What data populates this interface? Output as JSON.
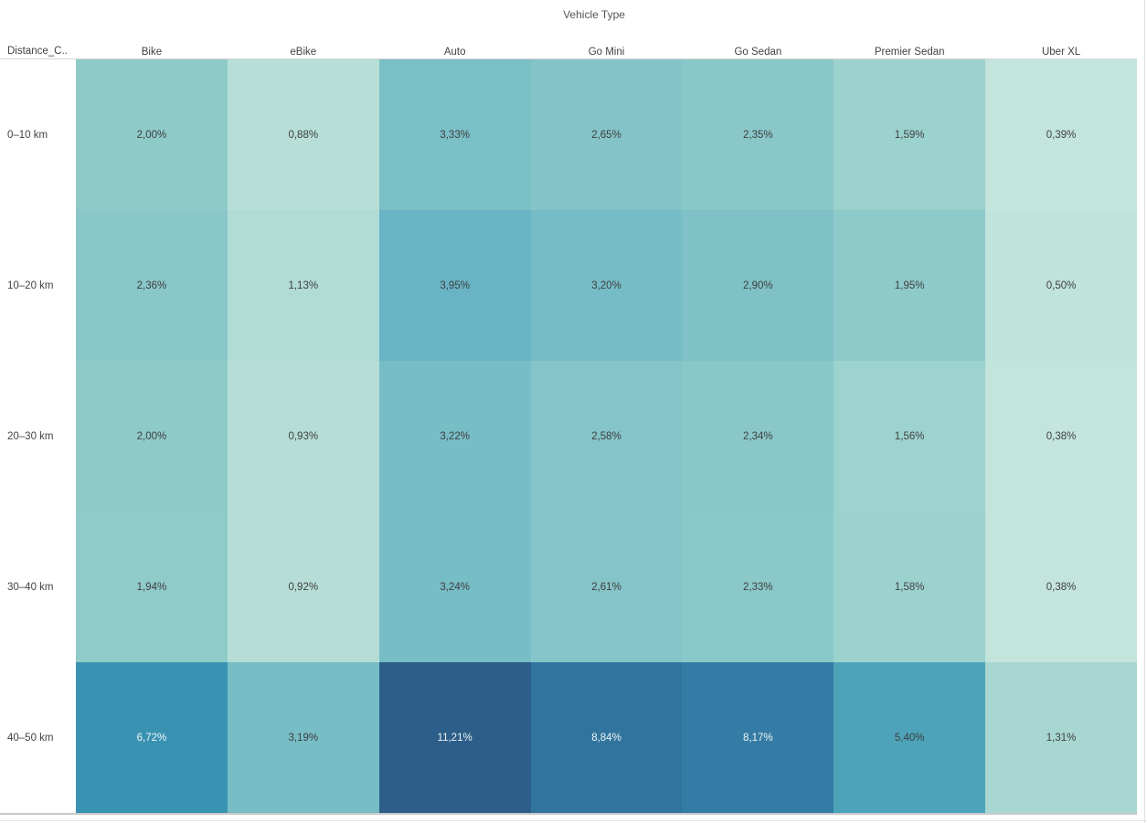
{
  "header": {
    "title": "Vehicle Type",
    "corner_label": "Distance_C.."
  },
  "colors": {
    "dark_cell_text": "#3f3f3f",
    "light_cell_text": "#eef4f6",
    "header_text": "#424242",
    "divider": "#d5d5d5"
  },
  "chart_data": {
    "type": "heatmap",
    "title": "Vehicle Type",
    "x_axis_label": "Vehicle Type",
    "y_axis_label": "Distance_C..",
    "x_categories": [
      "Bike",
      "eBike",
      "Auto",
      "Go Mini",
      "Go Sedan",
      "Premier Sedan",
      "Uber XL"
    ],
    "y_categories": [
      "0–10 km",
      "10–20 km",
      "20–30 km",
      "30–40 km",
      "40–50 km"
    ],
    "values_unit": "percent",
    "legend": "none",
    "color_scale": {
      "min_value": 0.38,
      "max_value": 11.21,
      "min_color": "#c3e5de",
      "max_color": "#2d5e89"
    },
    "rows": [
      {
        "label": "0–10 km",
        "cells": [
          {
            "label": "2,00%",
            "value": 2.0,
            "bg": "#8ecac8",
            "light": false
          },
          {
            "label": "0,88%",
            "value": 0.88,
            "bg": "#b7dfd8",
            "light": false
          },
          {
            "label": "3,33%",
            "value": 3.33,
            "bg": "#7bbfc7",
            "light": false
          },
          {
            "label": "2,65%",
            "value": 2.65,
            "bg": "#84c4c8",
            "light": false
          },
          {
            "label": "2,35%",
            "value": 2.35,
            "bg": "#8ac7c9",
            "light": false
          },
          {
            "label": "1,59%",
            "value": 1.59,
            "bg": "#9cd2ce",
            "light": false
          },
          {
            "label": "0,39%",
            "value": 0.39,
            "bg": "#c3e5de",
            "light": false
          }
        ]
      },
      {
        "label": "10–20 km",
        "cells": [
          {
            "label": "2,36%",
            "value": 2.36,
            "bg": "#8ac7c9",
            "light": false
          },
          {
            "label": "1,13%",
            "value": 1.13,
            "bg": "#b1dcd6",
            "light": false
          },
          {
            "label": "3,95%",
            "value": 3.95,
            "bg": "#68b3c4",
            "light": false
          },
          {
            "label": "3,20%",
            "value": 3.2,
            "bg": "#76bcc6",
            "light": false
          },
          {
            "label": "2,90%",
            "value": 2.9,
            "bg": "#7fc1c7",
            "light": false
          },
          {
            "label": "1,95%",
            "value": 1.95,
            "bg": "#8fcaca",
            "light": false
          },
          {
            "label": "0,50%",
            "value": 0.5,
            "bg": "#c0e3dc",
            "light": false
          }
        ]
      },
      {
        "label": "20–30 km",
        "cells": [
          {
            "label": "2,00%",
            "value": 2.0,
            "bg": "#8ecac8",
            "light": false
          },
          {
            "label": "0,93%",
            "value": 0.93,
            "bg": "#b6ded7",
            "light": false
          },
          {
            "label": "3,22%",
            "value": 3.22,
            "bg": "#77bdc6",
            "light": false
          },
          {
            "label": "2,58%",
            "value": 2.58,
            "bg": "#85c4c8",
            "light": false
          },
          {
            "label": "2,34%",
            "value": 2.34,
            "bg": "#8ac7c9",
            "light": false
          },
          {
            "label": "1,56%",
            "value": 1.56,
            "bg": "#9dd3cf",
            "light": false
          },
          {
            "label": "0,38%",
            "value": 0.38,
            "bg": "#c3e5de",
            "light": false
          }
        ]
      },
      {
        "label": "30–40 km",
        "cells": [
          {
            "label": "1,94%",
            "value": 1.94,
            "bg": "#8fcbc9",
            "light": false
          },
          {
            "label": "0,92%",
            "value": 0.92,
            "bg": "#b6ded7",
            "light": false
          },
          {
            "label": "3,24%",
            "value": 3.24,
            "bg": "#77bdc6",
            "light": false
          },
          {
            "label": "2,61%",
            "value": 2.61,
            "bg": "#85c4c8",
            "light": false
          },
          {
            "label": "2,33%",
            "value": 2.33,
            "bg": "#8bc8c9",
            "light": false
          },
          {
            "label": "1,58%",
            "value": 1.58,
            "bg": "#9cd2ce",
            "light": false
          },
          {
            "label": "0,38%",
            "value": 0.38,
            "bg": "#c3e5de",
            "light": false
          }
        ]
      },
      {
        "label": "40–50 km",
        "cells": [
          {
            "label": "6,72%",
            "value": 6.72,
            "bg": "#3a92b2",
            "light": true
          },
          {
            "label": "3,19%",
            "value": 3.19,
            "bg": "#77bdc6",
            "light": false
          },
          {
            "label": "11,21%",
            "value": 11.21,
            "bg": "#2d5e89",
            "light": true
          },
          {
            "label": "8,84%",
            "value": 8.84,
            "bg": "#31759f",
            "light": true
          },
          {
            "label": "8,17%",
            "value": 8.17,
            "bg": "#347ca5",
            "light": true
          },
          {
            "label": "5,40%",
            "value": 5.4,
            "bg": "#4da4ba",
            "light": false
          },
          {
            "label": "1,31%",
            "value": 1.31,
            "bg": "#a8d7d2",
            "light": false
          }
        ]
      }
    ]
  }
}
